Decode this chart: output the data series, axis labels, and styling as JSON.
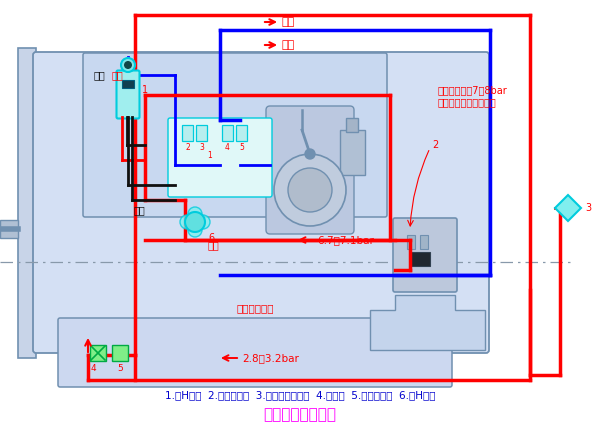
{
  "title": "变速器气路示意图",
  "title_color": "#FF00FF",
  "title_fontsize": 11,
  "legend_text": "1.双H气阀  2.范围档气缸  3.空气滤清调节器  4.空气阀  5.离合器踏板  6.单H气阀",
  "legend_color": "#0000CD",
  "legend_fontsize": 7.5,
  "bg_color": "#FFFFFF",
  "red": "#FF0000",
  "blue": "#0000FF",
  "cyan": "#00CCDD",
  "body_edge": "#7090B0",
  "body_fill": "#D0DCF0",
  "body_fill2": "#C8D8F0",
  "pressure_label_line1": "压缩空气入口7～8bar",
  "pressure_label_line2": "（来自汽车的储气罐）",
  "high_gear_label": "→高档",
  "low_gear_label": "→低档",
  "black_label": "黑色",
  "red_label": "红色",
  "pressure_67": "← 6.7～7.1bar",
  "pressure_28": "← 2.8～3.2bar",
  "oem_label": "由主机厂自备"
}
